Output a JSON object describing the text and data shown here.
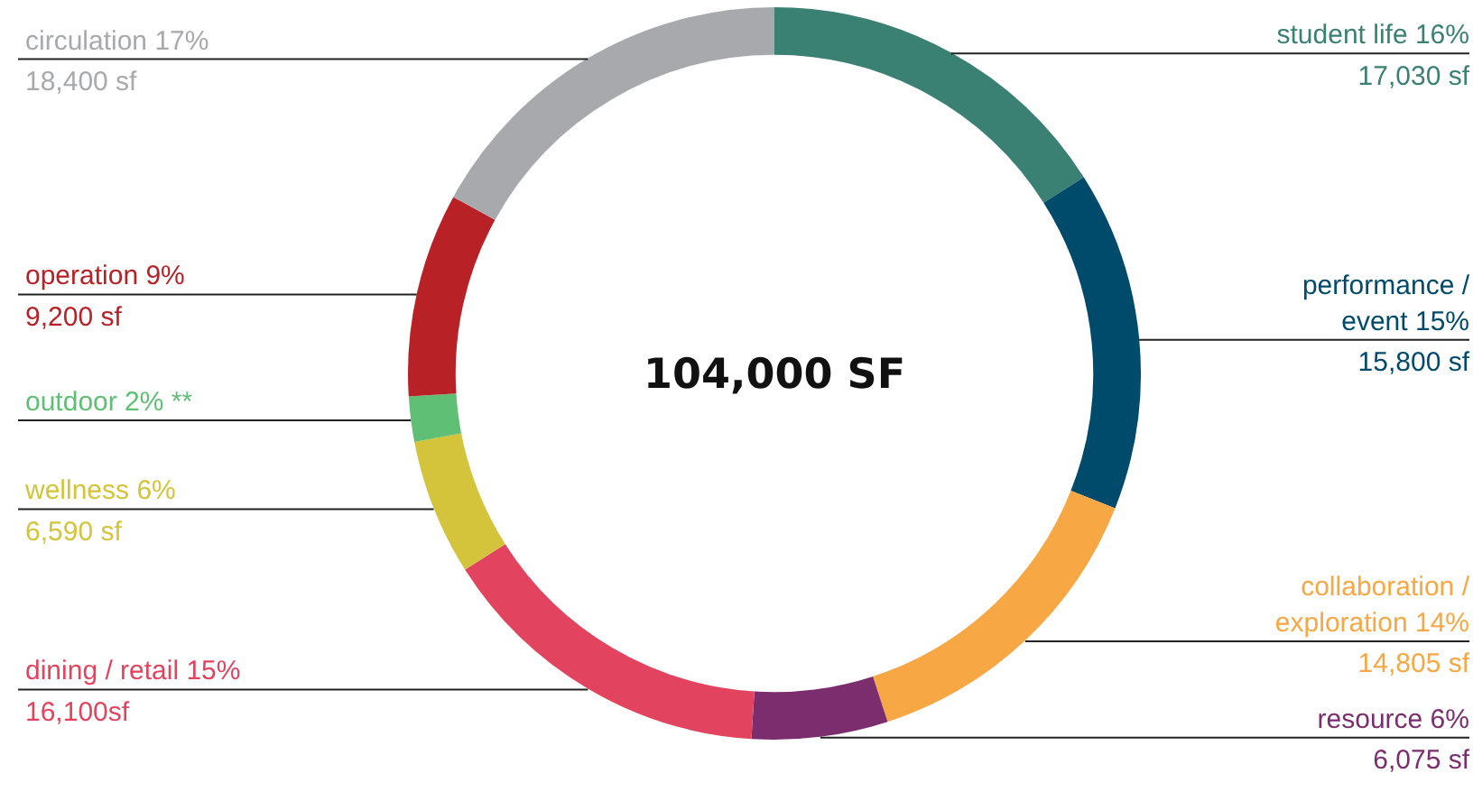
{
  "chart_data": {
    "type": "donut",
    "title": "104,000 SF",
    "categories": [
      "student life 16%\n17,030 sf",
      "performance /\nevent 15%\n15,800 sf",
      "collaboration /\nexploration 14%\n14,805 sf",
      "resource 6%\n6,075 sf",
      "dining / retail 15%\n16,100sf",
      "wellness 6%\n6,590 sf",
      "outdoor 2% **",
      "operation 9%\n9,200 sf",
      "circulation 17%\n18,400 sf"
    ],
    "values": [
      16,
      15,
      14,
      6,
      15,
      6,
      2,
      9,
      17
    ],
    "colors": [
      "#3a8073",
      "#004a6b",
      "#f8a745",
      "#7b2d6e",
      "#e2445f",
      "#d3c43b",
      "#5fbf74",
      "#b82126",
      "#a7a9ac"
    ],
    "legend": false
  }
}
